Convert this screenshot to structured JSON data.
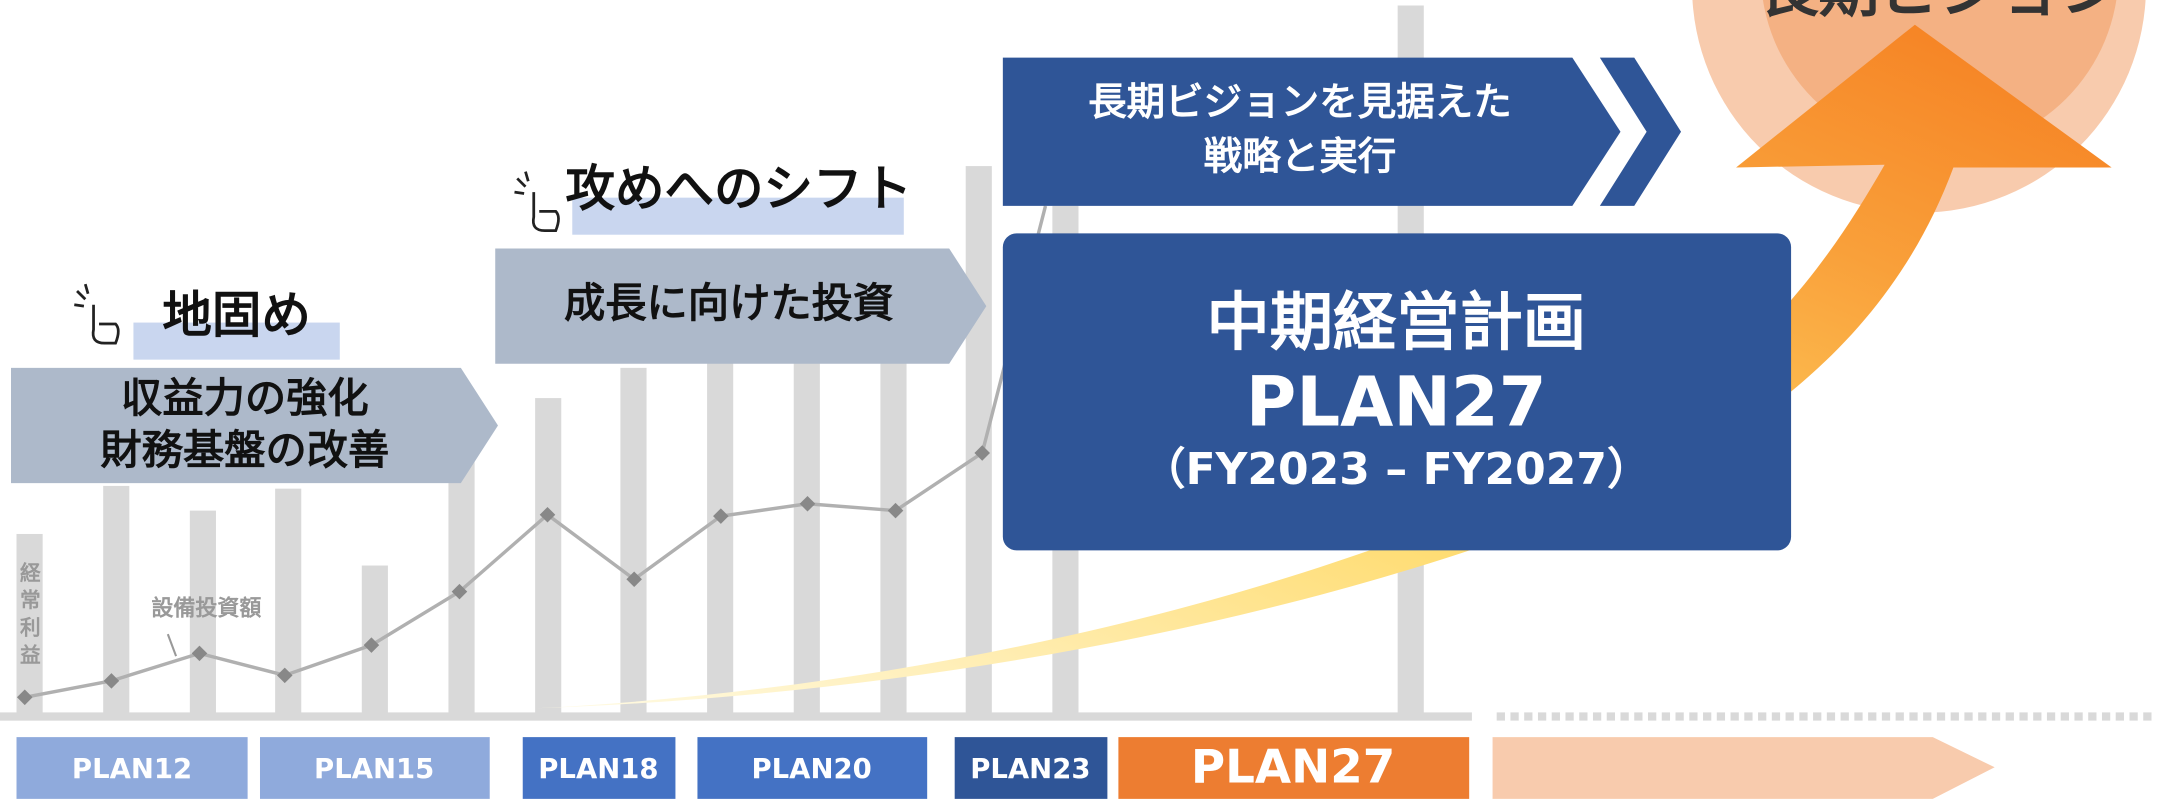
{
  "vision": {
    "title": "長期ビジョン"
  },
  "phases": [
    {
      "heading": "地固め",
      "lines": [
        "収益力の強化",
        "財務基盤の改善"
      ]
    },
    {
      "heading": "攻めへのシフト",
      "lines": [
        "成長に向けた投資"
      ]
    },
    {
      "lines": [
        "長期ビジョンを見据えた",
        "戦略と実行"
      ]
    }
  ],
  "plan_box": {
    "title": "中期経営計画",
    "name": "PLAN27",
    "period": "（FY2023 – FY2027）"
  },
  "labels": {
    "profit": "経常利益",
    "capex": "設備投資額"
  },
  "timeline": [
    "PLAN12",
    "PLAN15",
    "PLAN18",
    "PLAN20",
    "PLAN23",
    "PLAN27"
  ]
}
